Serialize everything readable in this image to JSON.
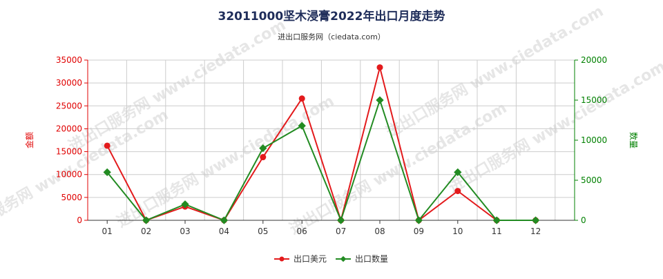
{
  "title": "32011000坚木浸膏2022年出口月度走势",
  "subtitle": "进出口服务网（ciedata.com）",
  "watermark": "进出口服务网 www.ciedata.com",
  "colors": {
    "left_axis": "#e00000",
    "right_axis": "#008000",
    "series_value": "#e31a1c",
    "series_qty": "#228b22",
    "grid": "#cccccc",
    "title": "#1f2d5a"
  },
  "chart_data": {
    "type": "line",
    "x": [
      "01",
      "02",
      "03",
      "04",
      "05",
      "06",
      "07",
      "08",
      "09",
      "10",
      "11",
      "12"
    ],
    "y_left": {
      "label": "金额",
      "range": [
        0,
        35000
      ],
      "ticks": [
        "0",
        "5000",
        "10000",
        "15000",
        "20000",
        "25000",
        "30000",
        "35000"
      ]
    },
    "y_right": {
      "label": "数量",
      "range": [
        0,
        20000
      ],
      "ticks": [
        "0",
        "5000",
        "10000",
        "15000",
        "20000"
      ]
    },
    "grid": true,
    "legend_position": "bottom",
    "series": [
      {
        "name": "出口美元",
        "axis": "left",
        "marker": "circle",
        "values": [
          16300,
          0,
          3000,
          0,
          13800,
          26600,
          0,
          33400,
          0,
          6400,
          0,
          0
        ]
      },
      {
        "name": "出口数量",
        "axis": "right",
        "marker": "diamond",
        "values": [
          6000,
          0,
          2000,
          0,
          9000,
          11800,
          0,
          15000,
          0,
          6000,
          0,
          0
        ]
      }
    ]
  }
}
